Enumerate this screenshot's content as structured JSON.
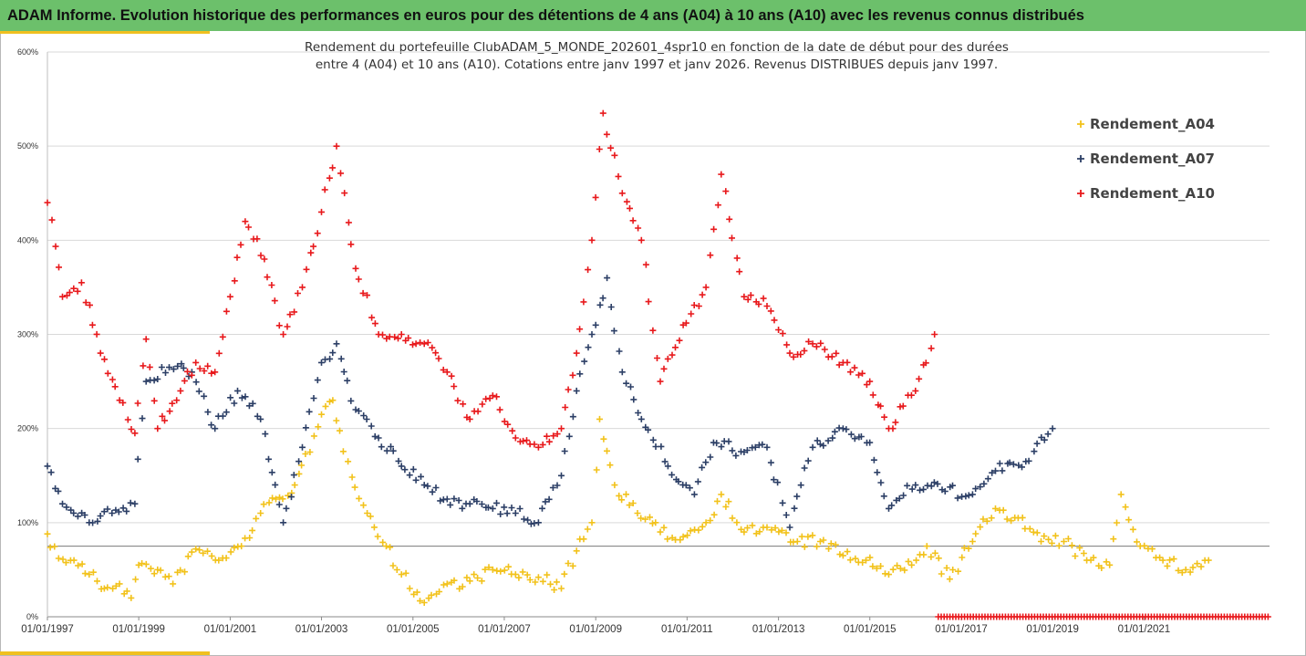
{
  "header": {
    "title": "ADAM Informe. Evolution historique des performances en euros pour des détentions de 4 ans (A04) à 10 ans (A10) avec les revenus connus distribués"
  },
  "colors": {
    "header_bg": "#6cc06b",
    "accent": "#f0c020",
    "A04": "#f2c21b",
    "A07": "#2c3f66",
    "A10": "#e8191c"
  },
  "chart_data": {
    "type": "scatter",
    "marker": "cross",
    "title_lines": [
      "Rendement du portefeuille ClubADAM_5_MONDE_202601_4spr10  en fonction de la date de début pour des durées",
      "entre 4 (A04) et 10 ans (A10). Cotations entre janv 1997 et janv 2026. Revenus DISTRIBUES depuis janv 1997."
    ],
    "x_axis": {
      "type": "date",
      "range": [
        "1997-01-01",
        "2023-10-01"
      ],
      "tick_labels": [
        "01/01/1997",
        "01/01/1999",
        "01/01/2001",
        "01/01/2003",
        "01/01/2005",
        "01/01/2007",
        "01/01/2009",
        "01/01/2011",
        "01/01/2013",
        "01/01/2015",
        "01/01/2017",
        "01/01/2019",
        "01/01/2021"
      ]
    },
    "y_axis": {
      "range": [
        0,
        600
      ],
      "unit": "%",
      "tick_labels": [
        "0%",
        "100%",
        "200%",
        "300%",
        "400%",
        "500%",
        "600%"
      ]
    },
    "reference_line_y": 75,
    "grid": "horizontal",
    "legend_position": "right",
    "series": [
      {
        "name": "Rendement_A04",
        "color_key": "A04",
        "points": [
          [
            "1997-01-01",
            88
          ],
          [
            "1997-04-01",
            62
          ],
          [
            "1997-08-01",
            60
          ],
          [
            "1997-12-01",
            45
          ],
          [
            "1998-04-01",
            30
          ],
          [
            "1998-08-01",
            35
          ],
          [
            "1998-11-01",
            20
          ],
          [
            "1999-01-01",
            55
          ],
          [
            "1999-06-01",
            50
          ],
          [
            "1999-10-01",
            35
          ],
          [
            "2000-04-01",
            72
          ],
          [
            "2000-10-01",
            60
          ],
          [
            "2001-04-01",
            75
          ],
          [
            "2001-09-01",
            110
          ],
          [
            "2002-01-01",
            125
          ],
          [
            "2002-06-01",
            140
          ],
          [
            "2002-10-01",
            175
          ],
          [
            "2003-01-01",
            215
          ],
          [
            "2003-04-01",
            230
          ],
          [
            "2003-08-01",
            165
          ],
          [
            "2004-01-01",
            110
          ],
          [
            "2004-06-01",
            75
          ],
          [
            "2004-10-01",
            45
          ],
          [
            "2005-04-01",
            15
          ],
          [
            "2005-10-01",
            35
          ],
          [
            "2006-04-01",
            38
          ],
          [
            "2006-10-01",
            50
          ],
          [
            "2007-04-01",
            45
          ],
          [
            "2007-10-01",
            42
          ],
          [
            "2008-04-01",
            30
          ],
          [
            "2008-08-01",
            70
          ],
          [
            "2008-12-01",
            100
          ],
          [
            "2009-02-01",
            210
          ],
          [
            "2009-06-01",
            140
          ],
          [
            "2009-12-01",
            110
          ],
          [
            "2010-06-01",
            90
          ],
          [
            "2010-12-01",
            85
          ],
          [
            "2011-06-01",
            100
          ],
          [
            "2011-10-01",
            130
          ],
          [
            "2012-04-01",
            90
          ],
          [
            "2012-10-01",
            95
          ],
          [
            "2013-06-01",
            80
          ],
          [
            "2013-12-01",
            80
          ],
          [
            "2014-06-01",
            65
          ],
          [
            "2014-12-01",
            60
          ],
          [
            "2015-06-01",
            45
          ],
          [
            "2015-12-01",
            55
          ],
          [
            "2016-04-01",
            75
          ],
          [
            "2016-10-01",
            40
          ],
          [
            "2017-04-01",
            80
          ],
          [
            "2017-10-01",
            115
          ],
          [
            "2018-04-01",
            105
          ],
          [
            "2018-10-01",
            80
          ],
          [
            "2019-04-01",
            80
          ],
          [
            "2019-10-01",
            60
          ],
          [
            "2020-04-01",
            55
          ],
          [
            "2020-07-01",
            130
          ],
          [
            "2020-12-01",
            75
          ],
          [
            "2021-06-01",
            60
          ],
          [
            "2021-12-01",
            50
          ],
          [
            "2022-06-01",
            60
          ]
        ]
      },
      {
        "name": "Rendement_A07",
        "color_key": "A07",
        "points": [
          [
            "1997-01-01",
            160
          ],
          [
            "1997-05-01",
            120
          ],
          [
            "1997-12-01",
            100
          ],
          [
            "1998-06-01",
            110
          ],
          [
            "1998-12-01",
            120
          ],
          [
            "1999-03-01",
            250
          ],
          [
            "1999-09-01",
            265
          ],
          [
            "2000-03-01",
            260
          ],
          [
            "2000-09-01",
            200
          ],
          [
            "2001-03-01",
            240
          ],
          [
            "2001-09-01",
            210
          ],
          [
            "2002-03-01",
            100
          ],
          [
            "2002-08-01",
            180
          ],
          [
            "2003-01-01",
            270
          ],
          [
            "2003-05-01",
            290
          ],
          [
            "2003-10-01",
            220
          ],
          [
            "2004-04-01",
            190
          ],
          [
            "2004-10-01",
            160
          ],
          [
            "2005-04-01",
            140
          ],
          [
            "2005-10-01",
            125
          ],
          [
            "2006-04-01",
            120
          ],
          [
            "2006-10-01",
            115
          ],
          [
            "2007-04-01",
            110
          ],
          [
            "2007-10-01",
            100
          ],
          [
            "2008-04-01",
            150
          ],
          [
            "2008-08-01",
            240
          ],
          [
            "2008-12-01",
            300
          ],
          [
            "2009-04-01",
            360
          ],
          [
            "2009-08-01",
            260
          ],
          [
            "2010-01-01",
            210
          ],
          [
            "2010-08-01",
            160
          ],
          [
            "2011-03-01",
            130
          ],
          [
            "2011-08-01",
            185
          ],
          [
            "2012-04-01",
            175
          ],
          [
            "2012-10-01",
            180
          ],
          [
            "2013-04-01",
            95
          ],
          [
            "2013-10-01",
            180
          ],
          [
            "2014-06-01",
            200
          ],
          [
            "2015-01-01",
            185
          ],
          [
            "2015-06-01",
            115
          ],
          [
            "2016-01-01",
            140
          ],
          [
            "2016-08-01",
            135
          ],
          [
            "2017-04-01",
            130
          ],
          [
            "2017-10-01",
            155
          ],
          [
            "2018-06-01",
            165
          ],
          [
            "2019-01-01",
            200
          ]
        ]
      },
      {
        "name": "Rendement_A10",
        "color_key": "A10",
        "points": [
          [
            "1997-01-01",
            440
          ],
          [
            "1997-05-01",
            340
          ],
          [
            "1997-10-01",
            355
          ],
          [
            "1998-03-01",
            280
          ],
          [
            "1998-08-01",
            230
          ],
          [
            "1998-12-01",
            195
          ],
          [
            "1999-03-01",
            295
          ],
          [
            "1999-06-01",
            200
          ],
          [
            "1999-12-01",
            240
          ],
          [
            "2000-04-01",
            270
          ],
          [
            "2000-09-01",
            260
          ],
          [
            "2001-01-01",
            340
          ],
          [
            "2001-05-01",
            420
          ],
          [
            "2001-10-01",
            380
          ],
          [
            "2002-03-01",
            300
          ],
          [
            "2002-08-01",
            350
          ],
          [
            "2003-01-01",
            430
          ],
          [
            "2003-05-01",
            500
          ],
          [
            "2003-10-01",
            370
          ],
          [
            "2004-04-01",
            300
          ],
          [
            "2004-10-01",
            300
          ],
          [
            "2005-04-01",
            290
          ],
          [
            "2005-10-01",
            260
          ],
          [
            "2006-04-01",
            210
          ],
          [
            "2006-10-01",
            235
          ],
          [
            "2007-04-01",
            190
          ],
          [
            "2007-10-01",
            180
          ],
          [
            "2008-04-01",
            200
          ],
          [
            "2008-08-01",
            280
          ],
          [
            "2008-12-01",
            400
          ],
          [
            "2009-03-01",
            535
          ],
          [
            "2009-08-01",
            450
          ],
          [
            "2010-01-01",
            400
          ],
          [
            "2010-06-01",
            250
          ],
          [
            "2010-12-01",
            310
          ],
          [
            "2011-06-01",
            350
          ],
          [
            "2011-10-01",
            470
          ],
          [
            "2012-04-01",
            340
          ],
          [
            "2012-10-01",
            330
          ],
          [
            "2013-04-01",
            280
          ],
          [
            "2013-10-01",
            290
          ],
          [
            "2014-06-01",
            270
          ],
          [
            "2015-01-01",
            250
          ],
          [
            "2015-06-01",
            200
          ],
          [
            "2016-01-01",
            240
          ],
          [
            "2016-06-01",
            300
          ]
        ],
        "zero_from": "2016-07-01",
        "zero_to": "2023-10-01"
      }
    ]
  }
}
